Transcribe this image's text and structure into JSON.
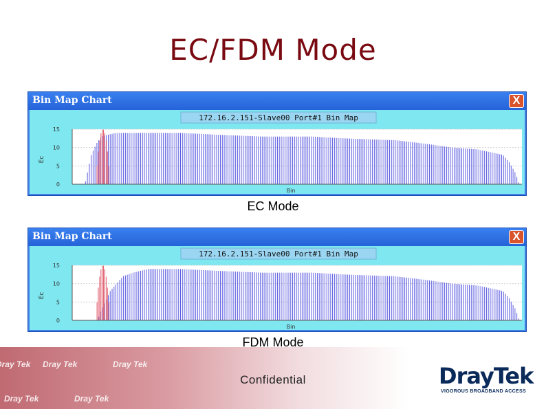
{
  "slide": {
    "title": "EC/FDM Mode"
  },
  "charts": [
    {
      "window_title": "Bin Map Chart",
      "close_label": "X",
      "caption": "EC Mode"
    },
    {
      "window_title": "Bin Map Chart",
      "close_label": "X",
      "caption": "FDM Mode"
    }
  ],
  "chart_data": [
    {
      "type": "bar",
      "title": "172.16.2.151-Slave00 Port#1 Bin Map",
      "xlabel": "Bin",
      "ylabel": "Ec",
      "ylim": [
        0,
        15
      ],
      "yticks": [
        0,
        5,
        10,
        15
      ],
      "grid": true,
      "colors": {
        "upstream": "#e05a6a",
        "downstream": "#5b5be0"
      },
      "series": [
        {
          "name": "upstream",
          "start": 8,
          "end": 30,
          "shape": "peak",
          "peak": 15
        },
        {
          "name": "downstream",
          "profile": [
            [
              20,
              0
            ],
            [
              30,
              8
            ],
            [
              38,
              11
            ],
            [
              46,
              13
            ],
            [
              56,
              13.5
            ],
            [
              70,
              14
            ],
            [
              140,
              14
            ],
            [
              170,
              14
            ],
            [
              230,
              13.5
            ],
            [
              300,
              13
            ],
            [
              380,
              13
            ],
            [
              430,
              12.5
            ],
            [
              510,
              12
            ],
            [
              560,
              11
            ],
            [
              600,
              10
            ],
            [
              640,
              9.5
            ],
            [
              680,
              8
            ],
            [
              690,
              6
            ],
            [
              700,
              3
            ],
            [
              706,
              0
            ]
          ]
        }
      ]
    },
    {
      "type": "bar",
      "title": "172.16.2.151-Slave00 Port#1 Bin Map",
      "xlabel": "Bin",
      "ylabel": "Ec",
      "ylim": [
        0,
        15
      ],
      "yticks": [
        0,
        5,
        10,
        15
      ],
      "grid": true,
      "colors": {
        "upstream": "#e05a6a",
        "downstream": "#5b5be0"
      },
      "series": [
        {
          "name": "upstream",
          "start": 8,
          "end": 30,
          "shape": "peak",
          "peak": 15
        },
        {
          "name": "downstream",
          "profile": [
            [
              40,
              0
            ],
            [
              44,
              2
            ],
            [
              52,
              5
            ],
            [
              60,
              8
            ],
            [
              70,
              10
            ],
            [
              80,
              12
            ],
            [
              96,
              13
            ],
            [
              120,
              14
            ],
            [
              170,
              14
            ],
            [
              230,
              13.5
            ],
            [
              300,
              13
            ],
            [
              380,
              13
            ],
            [
              430,
              12.5
            ],
            [
              510,
              12
            ],
            [
              560,
              11
            ],
            [
              600,
              10
            ],
            [
              640,
              9.5
            ],
            [
              680,
              8
            ],
            [
              690,
              6
            ],
            [
              700,
              3
            ],
            [
              706,
              0
            ]
          ]
        }
      ]
    }
  ],
  "footer": {
    "confidential": "Confidential",
    "logo": "DrayTek",
    "tagline": "VIGOROUS BROADBAND ACCESS",
    "mini_logos": [
      "Dray Tek",
      "Dray Tek",
      "Dray Tek",
      "Dray Tek"
    ]
  }
}
